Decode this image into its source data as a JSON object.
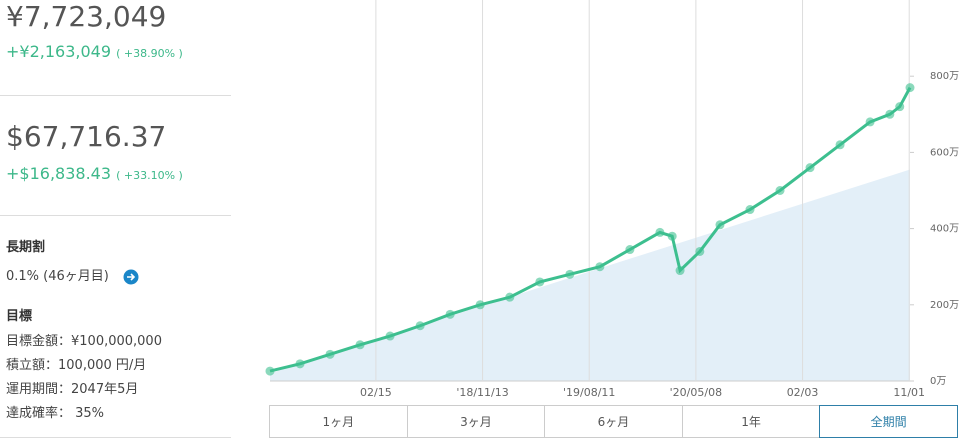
{
  "summary_jpy": {
    "total": "¥7,723,049",
    "gain": "+¥2,163,049",
    "gain_rate": "( +38.90% )"
  },
  "summary_usd": {
    "total": "$67,716.37",
    "gain": "+$16,838.43",
    "gain_rate": "( +33.10% )"
  },
  "discount": {
    "title": "長期割",
    "text": "0.1% (46ヶ月目)"
  },
  "goal": {
    "title": "目標",
    "items": [
      "目標金額：¥100,000,000",
      "積立額：100,000 円/月",
      "運用期間：2047年5月",
      "達成確率： 35%"
    ]
  },
  "chart_data": {
    "type": "line",
    "x": [
      0,
      76,
      152,
      228,
      304,
      380,
      456,
      532,
      607,
      683,
      759,
      835,
      911,
      987,
      1018,
      1038,
      1088,
      1139,
      1215,
      1291,
      1367,
      1443,
      1519,
      1569,
      1594,
      1620
    ],
    "values": [
      26,
      45,
      70,
      95,
      118,
      145,
      175,
      200,
      220,
      260,
      280,
      300,
      345,
      390,
      380,
      290,
      340,
      410,
      450,
      500,
      560,
      620,
      680,
      700,
      720,
      770
    ],
    "color": "#3dbf8f",
    "area": {
      "x": [
        0,
        1620
      ],
      "values": [
        20,
        555
      ],
      "color": "#e3eff8"
    },
    "xlim": [
      0,
      1620
    ],
    "xticks": [
      {
        "value": 268,
        "label": "02/15"
      },
      {
        "value": 538,
        "label": "'18/11/13"
      },
      {
        "value": 808,
        "label": "'19/08/11"
      },
      {
        "value": 1078,
        "label": "'20/05/08"
      },
      {
        "value": 1348,
        "label": "02/03"
      },
      {
        "value": 1618,
        "label": "11/01"
      }
    ],
    "ylim": [
      0,
      1000
    ],
    "yticks": [
      {
        "value": 0,
        "label": "0万"
      },
      {
        "value": 200,
        "label": "200万"
      },
      {
        "value": 400,
        "label": "400万"
      },
      {
        "value": 600,
        "label": "600万"
      },
      {
        "value": 800,
        "label": "800万"
      }
    ],
    "grid": "x"
  },
  "ranges": {
    "options": [
      "1ヶ月",
      "3ヶ月",
      "6ヶ月",
      "1年",
      "全期間"
    ],
    "selected": 4
  }
}
